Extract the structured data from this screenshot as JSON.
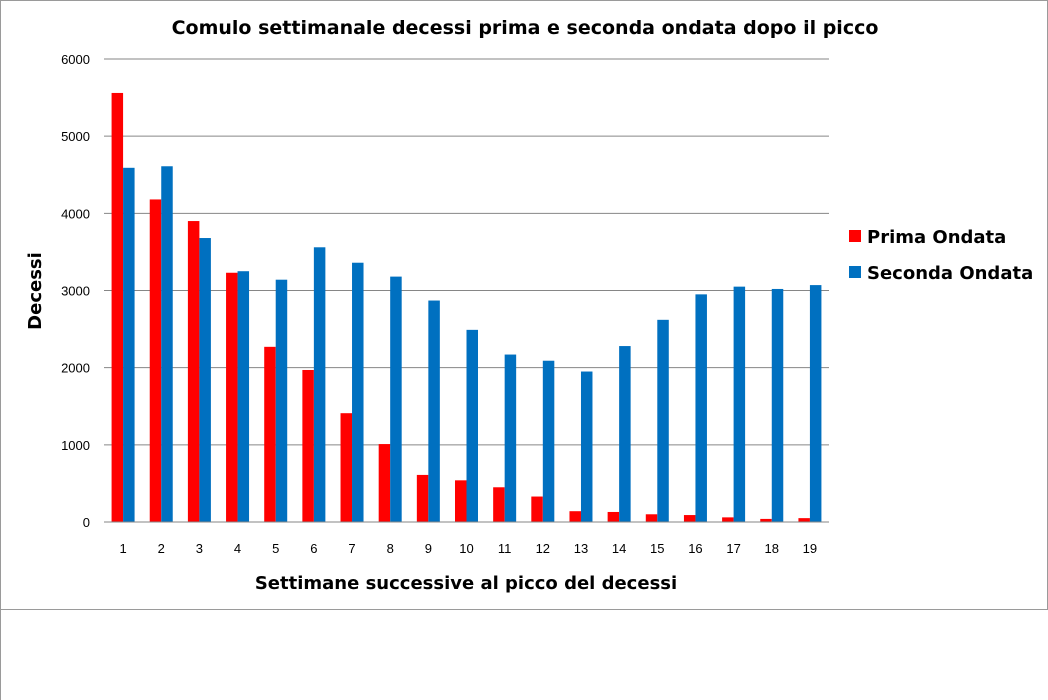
{
  "chart_data": {
    "type": "bar",
    "title": "Comulo settimanale decessi prima e seconda ondata dopo il picco",
    "xlabel": "Settimane successive al picco del decessi",
    "ylabel": "Decessi",
    "ylim": [
      0,
      6000
    ],
    "yticks": [
      "0",
      "1000",
      "2000",
      "3000",
      "4000",
      "5000",
      "6000"
    ],
    "grid": true,
    "legend_position": "right",
    "categories": [
      "1",
      "2",
      "3",
      "4",
      "5",
      "6",
      "7",
      "8",
      "9",
      "10",
      "11",
      "12",
      "13",
      "14",
      "15",
      "16",
      "17",
      "18",
      "19"
    ],
    "series": [
      {
        "name": "Prima Ondata",
        "color": "#ff0000",
        "values": [
          5560,
          4180,
          3900,
          3230,
          2270,
          1970,
          1410,
          1010,
          610,
          540,
          450,
          330,
          140,
          130,
          100,
          90,
          60,
          40,
          50
        ]
      },
      {
        "name": "Seconda Ondata",
        "color": "#0070c0",
        "values": [
          4590,
          4610,
          3680,
          3250,
          3140,
          3560,
          3360,
          3180,
          2870,
          2490,
          2170,
          2090,
          1950,
          2280,
          2620,
          2950,
          3050,
          3020,
          3070
        ]
      }
    ]
  }
}
